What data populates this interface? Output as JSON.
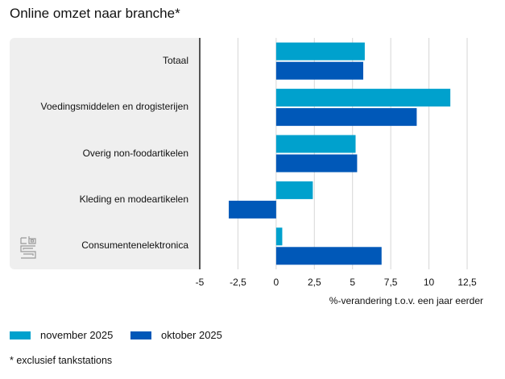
{
  "chart_data": {
    "type": "bar",
    "orientation": "horizontal",
    "title": "Online omzet naar branche*",
    "categories": [
      "Totaal",
      "Voedingsmiddelen en drogisterijen",
      "Overig non-foodartikelen",
      "Kleding en modeartikelen",
      "Consumentenelektronica"
    ],
    "series": [
      {
        "name": "november 2025",
        "color": "#00a1cd",
        "values": [
          5.8,
          11.4,
          5.2,
          2.4,
          0.4
        ]
      },
      {
        "name": "oktober 2025",
        "color": "#0058b8",
        "values": [
          5.7,
          9.2,
          5.3,
          -3.1,
          6.9
        ]
      }
    ],
    "xlabel": "%-verandering t.o.v. een jaar eerder",
    "ylabel": "",
    "xlim": [
      -5,
      12.5
    ],
    "ticks": [
      "-5",
      "-2,5",
      "0",
      "2,5",
      "5",
      "7,5",
      "10",
      "12,5"
    ],
    "tick_values": [
      -5,
      -2.5,
      0,
      2.5,
      5,
      7.5,
      10,
      12.5
    ],
    "grid": true,
    "legend_position": "bottom-left",
    "footnote": "* exclusief tankstations"
  }
}
